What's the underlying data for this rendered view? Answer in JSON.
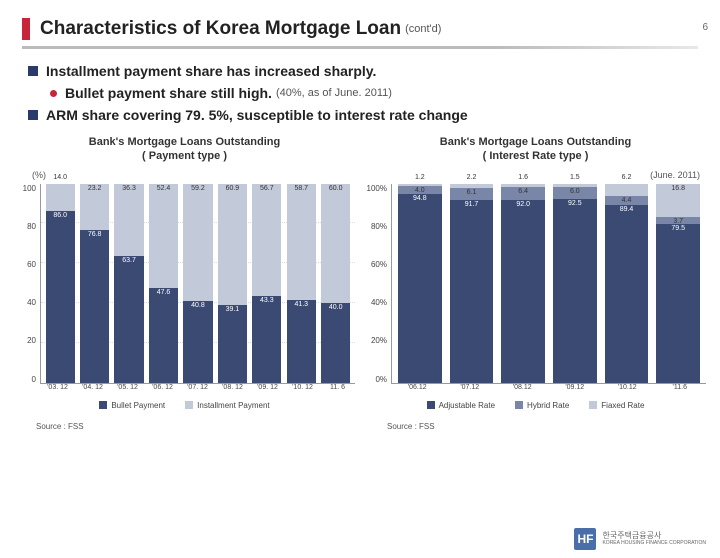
{
  "page_number": "6",
  "title": "Characteristics of Korea Mortgage Loan",
  "title_suffix": "(cont'd)",
  "bullets": {
    "b1": "Installment payment share has increased sharply.",
    "b1_sub": "Bullet payment share still high.",
    "b1_sub_note": "(40%, as of June. 2011)",
    "b2": "ARM share covering 79. 5%, susceptible to interest rate change"
  },
  "left_chart": {
    "title_l1": "Bank's Mortgage Loans Outstanding",
    "title_l2": "( Payment type )",
    "y_unit": "(%)",
    "ylim": [
      0,
      100
    ],
    "ytick_step": 20,
    "categories": [
      "'03. 12",
      "'04. 12",
      "'05. 12",
      "'06. 12",
      "'07. 12",
      "'08. 12",
      "'09. 12",
      "'10. 12",
      "11. 6"
    ],
    "series": {
      "bullet": [
        86.0,
        76.8,
        63.7,
        47.6,
        40.8,
        39.1,
        43.3,
        41.3,
        40.0
      ],
      "installment": [
        14.0,
        23.2,
        36.3,
        52.4,
        59.2,
        60.9,
        56.7,
        58.7,
        60.0
      ]
    },
    "colors": {
      "bullet": "#3a4a72",
      "installment": "#c2c9d8"
    },
    "legend": {
      "bullet": "Bullet Payment",
      "installment": "Installment Payment"
    },
    "background_color": "#ffffff",
    "grid_color": "#dddddd",
    "bar_width": 0.85,
    "label_fontsize": 7
  },
  "right_chart": {
    "title_l1": "Bank's Mortgage Loans Outstanding",
    "title_l2": "( Interest Rate type )",
    "date_note": "(June. 2011)",
    "ylim": [
      0,
      100
    ],
    "ytick_step": 20,
    "y_labels": [
      "0%",
      "20%",
      "40%",
      "60%",
      "80%",
      "100%"
    ],
    "categories": [
      "'06.12",
      "'07.12",
      "'08.12",
      "'09.12",
      "'10.12",
      "'11.6"
    ],
    "series": {
      "adjustable": [
        94.8,
        91.7,
        92.0,
        92.5,
        89.4,
        79.5
      ],
      "hybrid": [
        4.0,
        6.1,
        6.4,
        6.0,
        4.4,
        3.7
      ],
      "fixed": [
        1.2,
        2.2,
        1.6,
        1.5,
        6.2,
        16.8
      ]
    },
    "colors": {
      "adjustable": "#3a4a72",
      "hybrid": "#7a86a8",
      "fixed": "#c2c9d8"
    },
    "legend": {
      "adjustable": "Adjustable Rate",
      "hybrid": "Hybrid Rate",
      "fixed": "Fiaxed Rate"
    },
    "background_color": "#ffffff",
    "bar_width": 0.85,
    "label_fontsize": 7
  },
  "source_label": "Source : FSS",
  "logo": {
    "mark": "HF",
    "text_l1": "한국주택금융공사",
    "text_l2": "KOREA HOUSING FINANCE CORPORATION"
  }
}
